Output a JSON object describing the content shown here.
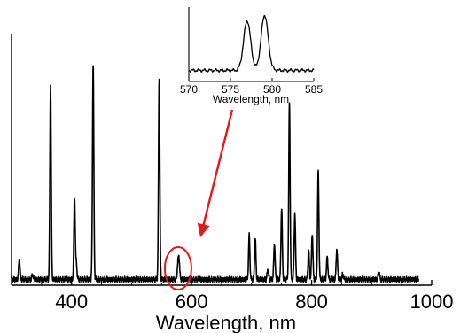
{
  "chart_data": [
    {
      "type": "line",
      "title": "",
      "xlabel": "Wavelength, nm",
      "ylabel": "",
      "xlim": [
        300,
        1000
      ],
      "ylim": [
        0,
        1.0
      ],
      "xticks": [
        400,
        600,
        800,
        1000
      ],
      "grid": false,
      "legend": "none",
      "line_color": "#000000",
      "peaks": [
        {
          "x": 313,
          "y": 0.08
        },
        {
          "x": 335,
          "y": 0.02
        },
        {
          "x": 365,
          "y": 0.76
        },
        {
          "x": 405,
          "y": 0.32
        },
        {
          "x": 408,
          "y": 0.06
        },
        {
          "x": 436,
          "y": 0.84
        },
        {
          "x": 546,
          "y": 0.79
        },
        {
          "x": 577,
          "y": 0.05
        },
        {
          "x": 579,
          "y": 0.08
        },
        {
          "x": 696,
          "y": 0.17
        },
        {
          "x": 706,
          "y": 0.16
        },
        {
          "x": 727,
          "y": 0.04
        },
        {
          "x": 738,
          "y": 0.14
        },
        {
          "x": 750,
          "y": 0.28
        },
        {
          "x": 763,
          "y": 0.69
        },
        {
          "x": 772,
          "y": 0.26
        },
        {
          "x": 795,
          "y": 0.11
        },
        {
          "x": 801,
          "y": 0.18
        },
        {
          "x": 811,
          "y": 0.42
        },
        {
          "x": 826,
          "y": 0.09
        },
        {
          "x": 842,
          "y": 0.12
        },
        {
          "x": 852,
          "y": 0.02
        },
        {
          "x": 912,
          "y": 0.03
        }
      ],
      "highlight": {
        "center_x": 579,
        "color": "#e31a1c"
      }
    },
    {
      "type": "line",
      "role": "inset",
      "title": "",
      "xlabel": "Wavelength, nm",
      "ylabel": "",
      "xlim": [
        570,
        585
      ],
      "ylim": [
        0,
        1.0
      ],
      "xticks": [
        570,
        575,
        580,
        585
      ],
      "grid": false,
      "line_color": "#000000",
      "peaks": [
        {
          "x": 577.0,
          "y": 0.8
        },
        {
          "x": 579.1,
          "y": 0.88
        }
      ],
      "baseline": 0.06
    }
  ]
}
